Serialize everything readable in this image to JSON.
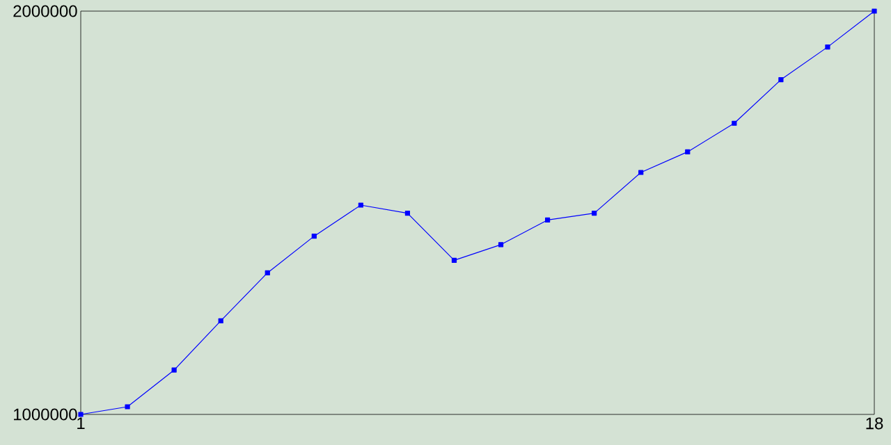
{
  "chart_data": {
    "type": "line",
    "x": [
      1,
      2,
      3,
      4,
      5,
      6,
      7,
      8,
      9,
      10,
      11,
      12,
      13,
      14,
      15,
      16,
      17,
      18
    ],
    "values": [
      1000000,
      1019000,
      1110000,
      1232000,
      1351000,
      1442000,
      1519000,
      1499000,
      1382000,
      1421000,
      1482000,
      1499000,
      1600000,
      1651000,
      1722000,
      1830000,
      1911000,
      2000000
    ],
    "color": "#0000ff",
    "marker": "square",
    "xlim": [
      1,
      18
    ],
    "ylim": [
      1000000,
      2000000
    ],
    "xticks": [
      1,
      18
    ],
    "yticks": [
      1000000,
      2000000
    ]
  }
}
